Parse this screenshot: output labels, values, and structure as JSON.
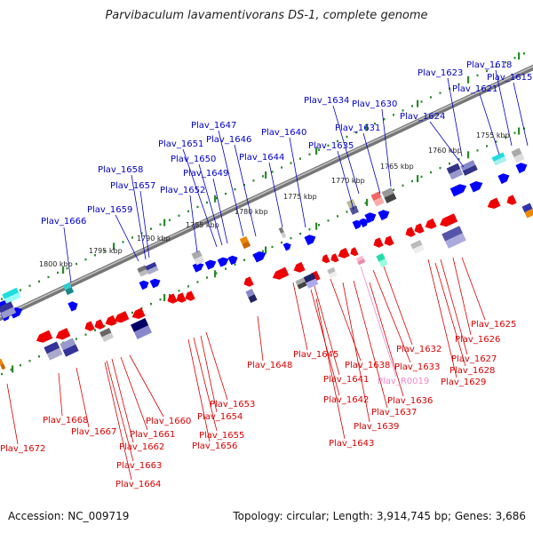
{
  "title": "Parvibaculum lavamentivorans DS-1, complete genome",
  "footer": {
    "accession": "Accession: NC_009719",
    "summary": "Topology: circular; Length: 3,914,745 bp; Genes: 3,686"
  },
  "colors": {
    "forward_label": "#0000cc",
    "reverse_label": "#dd0000",
    "rna_label": "#ee88cc",
    "backbone": "#8a8a8a",
    "tick": "#2a8a2a",
    "forward_gene": "#0000ff",
    "reverse_gene": "#ee0000"
  },
  "scale_labels": [
    "1800 kbp",
    "1795 kbp",
    "1790 kbp",
    "1785 kbp",
    "1780 kbp",
    "1775 kbp",
    "1770 kbp",
    "1765 kbp",
    "1760 kbp",
    "1755 kbp"
  ],
  "forward_labels": [
    "Plav_1666",
    "Plav_1659",
    "Plav_1658",
    "Plav_1657",
    "Plav_1652",
    "Plav_1651",
    "Plav_1650",
    "Plav_1649",
    "Plav_1647",
    "Plav_1646",
    "Plav_1644",
    "Plav_1640",
    "Plav_1635",
    "Plav_1634",
    "Plav_1631",
    "Plav_1630",
    "Plav_1624",
    "Plav_1623",
    "Plav_1621",
    "Plav_1618",
    "Plav_1615"
  ],
  "reverse_labels": [
    "Plav_1672",
    "Plav_1668",
    "Plav_1667",
    "Plav_1662",
    "Plav_1663",
    "Plav_1664",
    "Plav_1661",
    "Plav_1660",
    "Plav_1655",
    "Plav_1656",
    "Plav_1654",
    "Plav_1653",
    "Plav_1648",
    "Plav_1645",
    "Plav_1641",
    "Plav_1642",
    "Plav_1643",
    "Plav_1638",
    "Plav_1639",
    "Plav_1637",
    "Plav_1636",
    "Plav_1633",
    "Plav_1632",
    "Plav_1629",
    "Plav_1628",
    "Plav_1627",
    "Plav_1626",
    "Plav_1625"
  ],
  "rna_labels": [
    "Plav_R0019"
  ]
}
